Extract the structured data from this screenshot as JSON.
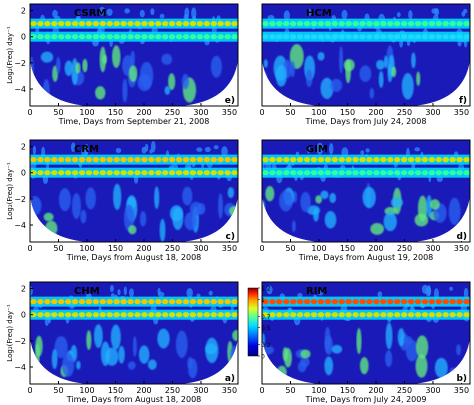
{
  "chart_data": [
    {
      "type": "heatmap",
      "panel_label": "e)",
      "model_label": "CSRM",
      "xlabel": "Time, Days from September 21, 2008",
      "ylabel": "Log₂(Freq) day⁻¹",
      "x_ticks": [
        0,
        50,
        100,
        150,
        200,
        250,
        300,
        350
      ],
      "y_ticks": [
        2,
        0,
        -2,
        -4
      ],
      "xlim": [
        0,
        365
      ],
      "ylim": [
        -5.3,
        2.5
      ],
      "bands": [
        {
          "y": 1,
          "level": "high"
        },
        {
          "y": 0,
          "level": "moderate"
        }
      ]
    },
    {
      "type": "heatmap",
      "panel_label": "f)",
      "model_label": "HCM",
      "xlabel": "Time, Days from July 24, 2008",
      "ylabel": "",
      "x_ticks": [
        0,
        50,
        100,
        150,
        200,
        250,
        300,
        350
      ],
      "y_ticks": [],
      "xlim": [
        0,
        365
      ],
      "ylim": [
        -5.3,
        2.5
      ],
      "bands": [
        {
          "y": 1,
          "level": "moderate"
        },
        {
          "y": 0,
          "level": "low"
        }
      ]
    },
    {
      "type": "heatmap",
      "panel_label": "c)",
      "model_label": "CRM",
      "xlabel": "Time, Days from August 18, 2008",
      "ylabel": "Log₂(Freq) day⁻¹",
      "x_ticks": [
        0,
        50,
        100,
        150,
        200,
        250,
        300,
        350
      ],
      "y_ticks": [
        2,
        0,
        -2,
        -4
      ],
      "xlim": [
        0,
        365
      ],
      "ylim": [
        -5.3,
        2.5
      ],
      "bands": [
        {
          "y": 1,
          "level": "very high"
        },
        {
          "y": 0,
          "level": "high"
        }
      ]
    },
    {
      "type": "heatmap",
      "panel_label": "d)",
      "model_label": "GIM",
      "xlabel": "Time, Days from August 19, 2008",
      "ylabel": "",
      "x_ticks": [
        0,
        50,
        100,
        150,
        200,
        250,
        300,
        350
      ],
      "y_ticks": [],
      "xlim": [
        0,
        365
      ],
      "ylim": [
        -5.3,
        2.5
      ],
      "bands": [
        {
          "y": 1,
          "level": "high"
        },
        {
          "y": 0,
          "level": "moderate"
        }
      ]
    },
    {
      "type": "heatmap",
      "panel_label": "a)",
      "model_label": "CHM",
      "xlabel": "Time, Days from August 18, 2008",
      "ylabel": "Log₂(Freq) day⁻¹",
      "x_ticks": [
        0,
        50,
        100,
        150,
        200,
        250,
        300,
        350
      ],
      "y_ticks": [
        2,
        0,
        -2,
        -4
      ],
      "xlim": [
        0,
        365
      ],
      "ylim": [
        -5.3,
        2.5
      ],
      "bands": [
        {
          "y": 1,
          "level": "very high"
        },
        {
          "y": 0,
          "level": "high"
        }
      ]
    },
    {
      "type": "heatmap",
      "panel_label": "b)",
      "model_label": "RIM",
      "xlabel": "Time, Days from July 24, 2009",
      "ylabel": "",
      "x_ticks": [
        0,
        50,
        100,
        150,
        200,
        250,
        300,
        350
      ],
      "y_ticks": [],
      "xlim": [
        0,
        365
      ],
      "ylim": [
        -5.3,
        2.5
      ],
      "bands": [
        {
          "y": 1,
          "level": "peak"
        },
        {
          "y": 0,
          "level": "high"
        }
      ]
    }
  ],
  "colorbar": {
    "tick_labels": [
      "1.2",
      "1",
      "0.7",
      "0.5",
      "0.2",
      "0"
    ],
    "tick_values": [
      1.2,
      1.0,
      0.7,
      0.5,
      0.2,
      0
    ],
    "range": [
      0,
      1.2
    ],
    "colors": [
      "#00007f",
      "#0000d8",
      "#0040ff",
      "#00b0ff",
      "#40ffc0",
      "#c0ff40",
      "#ffd000",
      "#ff5000",
      "#d00000",
      "#800000"
    ]
  },
  "palette": {
    "background": "#1c1cb4",
    "high_band": "#e8e000",
    "peak_band": "#ff4000",
    "mid": "#20c8ff",
    "low": "#50e090"
  }
}
